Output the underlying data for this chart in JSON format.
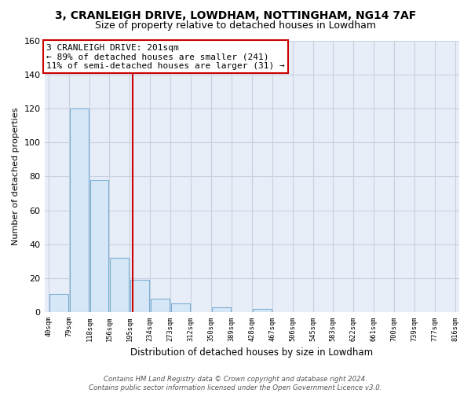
{
  "title": "3, CRANLEIGH DRIVE, LOWDHAM, NOTTINGHAM, NG14 7AF",
  "subtitle": "Size of property relative to detached houses in Lowdham",
  "xlabel": "Distribution of detached houses by size in Lowdham",
  "ylabel": "Number of detached properties",
  "bar_edges": [
    40,
    79,
    118,
    156,
    195,
    234,
    273,
    312,
    350,
    389,
    428,
    467,
    506,
    545,
    583,
    622,
    661,
    700,
    739,
    777,
    816
  ],
  "bar_heights": [
    11,
    120,
    78,
    32,
    19,
    8,
    5,
    0,
    3,
    0,
    2,
    0,
    0,
    0,
    0,
    0,
    0,
    0,
    0,
    0
  ],
  "bar_color": "#d6e8f7",
  "bar_edgecolor": "#7bafd4",
  "property_line_x": 201,
  "property_line_color": "#cc0000",
  "annotation_text": "3 CRANLEIGH DRIVE: 201sqm\n← 89% of detached houses are smaller (241)\n11% of semi-detached houses are larger (31) →",
  "annotation_box_facecolor": "#ffffff",
  "annotation_box_edgecolor": "#cc0000",
  "ylim": [
    0,
    160
  ],
  "yticks": [
    0,
    20,
    40,
    60,
    80,
    100,
    120,
    140,
    160
  ],
  "tick_labels": [
    "40sqm",
    "79sqm",
    "118sqm",
    "156sqm",
    "195sqm",
    "234sqm",
    "273sqm",
    "312sqm",
    "350sqm",
    "389sqm",
    "428sqm",
    "467sqm",
    "506sqm",
    "545sqm",
    "583sqm",
    "622sqm",
    "661sqm",
    "700sqm",
    "739sqm",
    "777sqm",
    "816sqm"
  ],
  "footer_text": "Contains HM Land Registry data © Crown copyright and database right 2024.\nContains public sector information licensed under the Open Government Licence v3.0.",
  "bg_color": "#ffffff",
  "plot_bg_color": "#e8eef8",
  "grid_color": "#c8d0e0",
  "title_fontsize": 10,
  "subtitle_fontsize": 9,
  "annotation_fontsize": 8
}
